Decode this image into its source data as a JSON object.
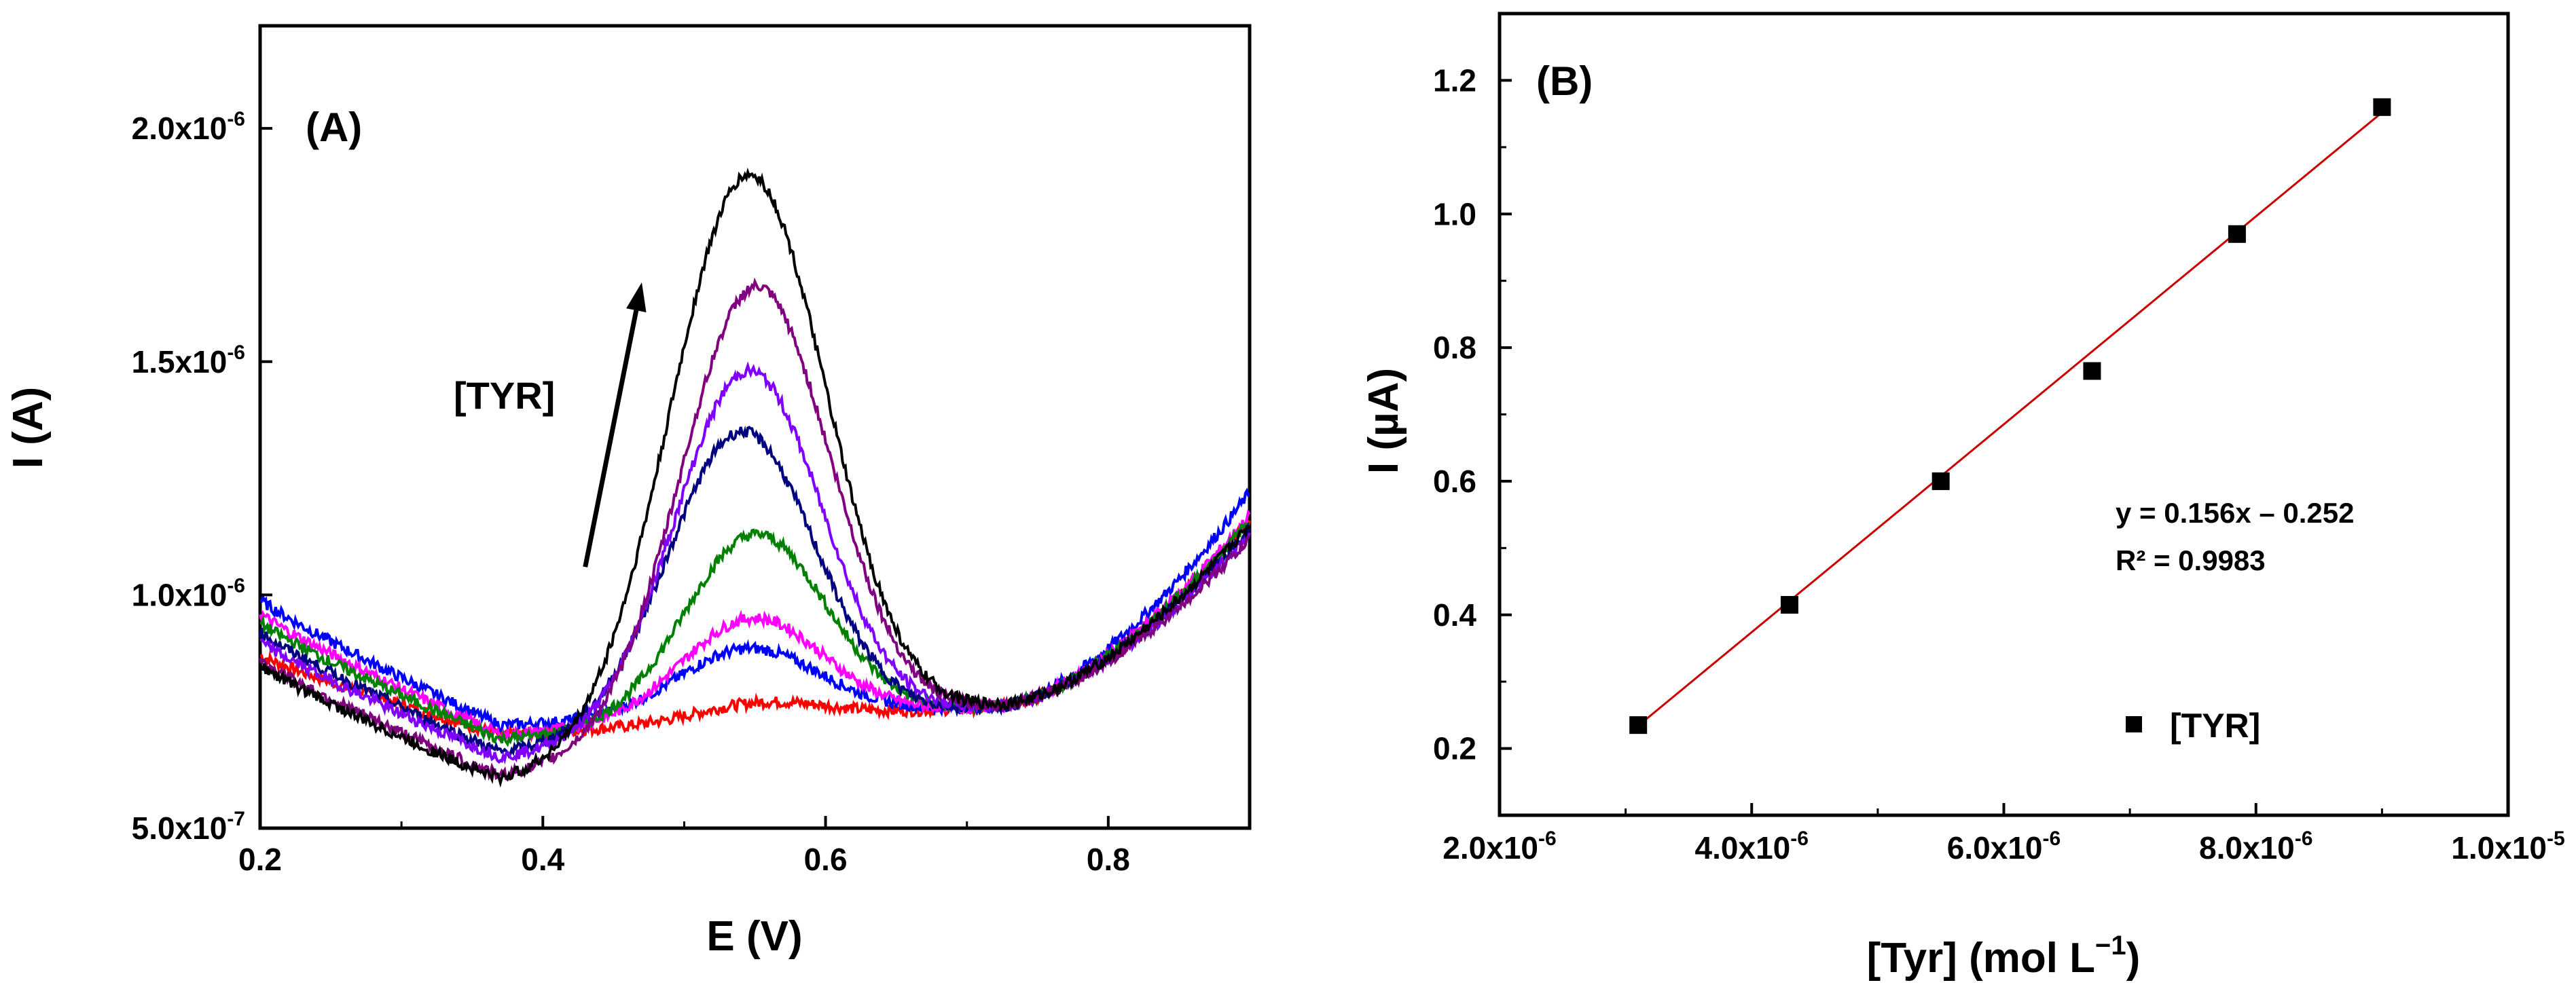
{
  "chart_data": [
    {
      "panel_label": "(A)",
      "type": "line",
      "xlabel": "E (V)",
      "ylabel": "I (A)",
      "xlim": [
        0.2,
        0.9
      ],
      "ylim": [
        5e-07,
        2.22e-06
      ],
      "x_ticks": [
        0.2,
        0.4,
        0.6,
        0.8
      ],
      "x_tick_labels": [
        "0.2",
        "0.4",
        "0.6",
        "0.8"
      ],
      "y_ticks": [
        5e-07,
        1e-06,
        1.5e-06,
        2e-06
      ],
      "y_tick_labels": [
        {
          "mant": "5.0x10",
          "exp": "-7"
        },
        {
          "mant": "1.0x10",
          "exp": "-6"
        },
        {
          "mant": "1.5x10",
          "exp": "-6"
        },
        {
          "mant": "2.0x10",
          "exp": "-6"
        }
      ],
      "annotation": "[TYR]",
      "arrow": {
        "from": [
          0.43,
          1.06e-06
        ],
        "to": [
          0.47,
          1.67e-06
        ]
      },
      "series_model": "baseline from left value to right value; Gaussian peak (height, center, width); noise amplitude",
      "series": [
        {
          "color": "#ff0000",
          "left": 8.7e-07,
          "min": 7e-07,
          "right": 1.16e-06,
          "peak": 7.7e-07,
          "center": 0.555,
          "width": 0.045
        },
        {
          "color": "#0000ff",
          "left": 9.9e-07,
          "min": 7.2e-07,
          "right": 1.22e-06,
          "peak": 8.85e-07,
          "center": 0.545,
          "width": 0.05
        },
        {
          "color": "#ff00ff",
          "left": 9.6e-07,
          "min": 7e-07,
          "right": 1.17e-06,
          "peak": 9.5e-07,
          "center": 0.548,
          "width": 0.05
        },
        {
          "color": "#008000",
          "left": 9.4e-07,
          "min": 6.9e-07,
          "right": 1.16e-06,
          "peak": 1.13e-06,
          "center": 0.55,
          "width": 0.05
        },
        {
          "color": "#000080",
          "left": 9.2e-07,
          "min": 6.6e-07,
          "right": 1.14e-06,
          "peak": 1.35e-06,
          "center": 0.54,
          "width": 0.052
        },
        {
          "color": "#8000ff",
          "left": 9e-07,
          "min": 6.5e-07,
          "right": 1.13e-06,
          "peak": 1.48e-06,
          "center": 0.545,
          "width": 0.052
        },
        {
          "color": "#800080",
          "left": 8.6e-07,
          "min": 6.1e-07,
          "right": 1.12e-06,
          "peak": 1.66e-06,
          "center": 0.55,
          "width": 0.053
        },
        {
          "color": "#000000",
          "left": 8.5e-07,
          "min": 6e-07,
          "right": 1.15e-06,
          "peak": 1.9e-06,
          "center": 0.545,
          "width": 0.055
        }
      ]
    },
    {
      "panel_label": "(B)",
      "type": "scatter",
      "xlabel": "[Tyr] (mol L",
      "xlabel_exp": "−1",
      "xlabel_close": ")",
      "ylabel": "I (µA)",
      "xlim": [
        2e-06,
        1e-05
      ],
      "ylim": [
        0.1,
        1.3
      ],
      "x_ticks": [
        2e-06,
        4e-06,
        6e-06,
        8e-06,
        1e-05
      ],
      "x_tick_labels": [
        {
          "mant": "2.0x10",
          "exp": "-6"
        },
        {
          "mant": "4.0x10",
          "exp": "-6"
        },
        {
          "mant": "6.0x10",
          "exp": "-6"
        },
        {
          "mant": "8.0x10",
          "exp": "-6"
        },
        {
          "mant": "1.0x10",
          "exp": "-5"
        }
      ],
      "y_ticks": [
        0.2,
        0.4,
        0.6,
        0.8,
        1.0,
        1.2
      ],
      "y_tick_labels": [
        "0.2",
        "0.4",
        "0.6",
        "0.8",
        "1.0",
        "1.2"
      ],
      "points": {
        "x": [
          3.1e-06,
          4.3e-06,
          5.5e-06,
          6.7e-06,
          7.85e-06,
          9e-06
        ],
        "y": [
          0.235,
          0.415,
          0.6,
          0.765,
          0.97,
          1.16
        ]
      },
      "fit": {
        "x": [
          3.1e-06,
          9e-06
        ],
        "y": [
          0.234,
          1.152
        ],
        "color": "#cc0000"
      },
      "equation": "y = 0.156x – 0.252",
      "r_squared": "R² = 0.9983",
      "legend": "[TYR]",
      "legend_position": "bottom-right"
    }
  ]
}
